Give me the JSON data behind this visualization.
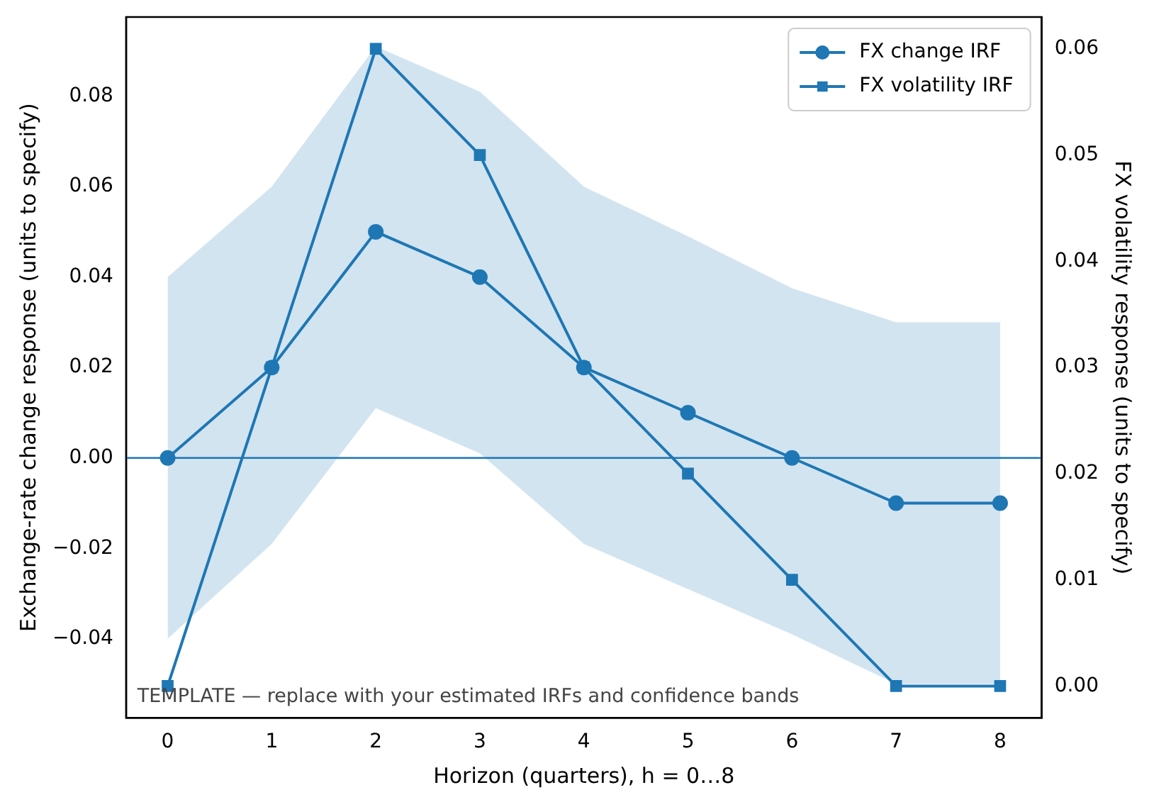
{
  "chart_data": {
    "type": "line",
    "xlabel": "Horizon (quarters), h = 0…8",
    "ylabel": "Exchange-rate change response (units to specify)",
    "y2label": "FX volatility response (units to specify)",
    "x": [
      0,
      1,
      2,
      3,
      4,
      5,
      6,
      7,
      8
    ],
    "xlim": [
      -0.4,
      8.4
    ],
    "xticks": [
      0,
      1,
      2,
      3,
      4,
      5,
      6,
      7,
      8
    ],
    "ylim": [
      -0.0575,
      0.0975
    ],
    "yticks": [
      {
        "value": -0.04,
        "label": "−0.04"
      },
      {
        "value": -0.02,
        "label": "−0.02"
      },
      {
        "value": 0,
        "label": "0.00"
      },
      {
        "value": 0.02,
        "label": "0.02"
      },
      {
        "value": 0.04,
        "label": "0.04"
      },
      {
        "value": 0.06,
        "label": "0.06"
      },
      {
        "value": 0.08,
        "label": "0.08"
      }
    ],
    "y2lim": [
      -0.003,
      0.063
    ],
    "y2ticks": [
      {
        "value": 0,
        "label": "0.00"
      },
      {
        "value": 0.01,
        "label": "0.01"
      },
      {
        "value": 0.02,
        "label": "0.02"
      },
      {
        "value": 0.03,
        "label": "0.03"
      },
      {
        "value": 0.04,
        "label": "0.04"
      },
      {
        "value": 0.05,
        "label": "0.05"
      },
      {
        "value": 0.06,
        "label": "0.06"
      }
    ],
    "series": [
      {
        "name": "FX change IRF",
        "color": "#1f77b4",
        "marker": "circle",
        "values": [
          0,
          0.02,
          0.05,
          0.04,
          0.02,
          0.01,
          0,
          -0.01,
          -0.01
        ],
        "lower": [
          -0.04,
          -0.019,
          0.011,
          0.001,
          -0.019,
          -0.029,
          -0.039,
          -0.05,
          -0.05
        ],
        "upper": [
          0.04,
          0.06,
          0.091,
          0.081,
          0.06,
          0.049,
          0.0375,
          0.03,
          0.03
        ]
      },
      {
        "name": "FX volatility IRF",
        "color": "#1f77b4",
        "marker": "square",
        "axis": "y2",
        "values": [
          0,
          0.03,
          0.06,
          0.05,
          0.03,
          0.02,
          0.01,
          0,
          0
        ]
      }
    ],
    "ref_lines": [
      {
        "axis": "y",
        "value": 0,
        "color": "#1f77b4"
      }
    ],
    "annotations": [
      "TEMPLATE — replace with your estimated IRFs and confidence bands"
    ],
    "legend": "top right",
    "grid": false
  }
}
